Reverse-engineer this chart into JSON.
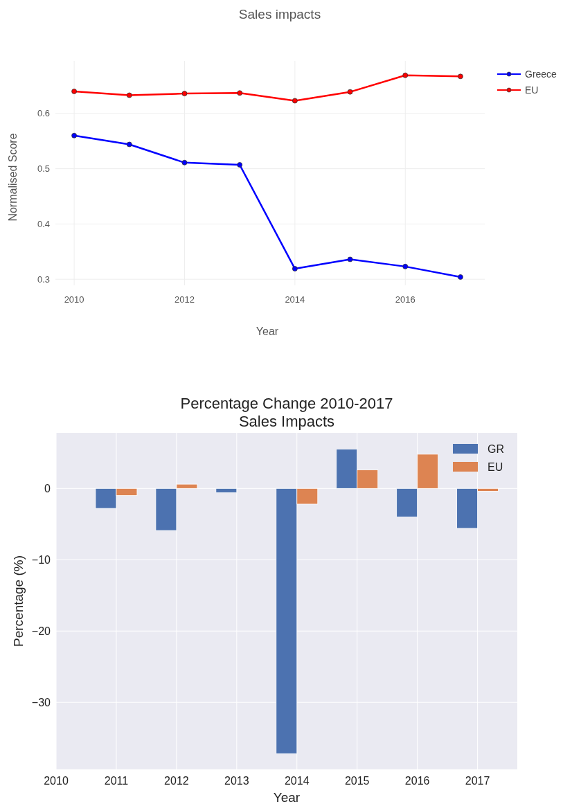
{
  "chart_data": [
    {
      "type": "line",
      "title": "Sales impacts",
      "xlabel": "Year",
      "ylabel": "Normalised Score",
      "x": [
        2010,
        2011,
        2012,
        2013,
        2014,
        2015,
        2016,
        2017
      ],
      "series": [
        {
          "name": "Greece",
          "color": "#0000ff",
          "values": [
            0.56,
            0.544,
            0.511,
            0.507,
            0.319,
            0.336,
            0.323,
            0.304
          ]
        },
        {
          "name": "EU",
          "color": "#ff0000",
          "values": [
            0.64,
            0.633,
            0.636,
            0.637,
            0.623,
            0.639,
            0.669,
            0.667
          ]
        }
      ],
      "xlim": [
        2009.66,
        2017.44
      ],
      "xticks": [
        2010,
        2012,
        2014,
        2016
      ],
      "ylim": [
        0.289,
        0.695
      ],
      "yticks": [
        {
          "value": 0.3,
          "label": "0.3"
        },
        {
          "value": 0.4,
          "label": "0.4"
        },
        {
          "value": 0.5,
          "label": "0.5"
        },
        {
          "value": 0.6,
          "label": "0.6"
        }
      ],
      "grid": true,
      "legend": "top right",
      "marker": "circle"
    },
    {
      "type": "bar",
      "title": "Percentage Change 2010-2017\nSales Impacts",
      "xlabel": "Year",
      "ylabel": "Percentage (%)",
      "categories": [
        "2010",
        "2011",
        "2012",
        "2013",
        "2014",
        "2015",
        "2016",
        "2017"
      ],
      "series": [
        {
          "name": "GR",
          "color": "#4c72b0",
          "values": [
            null,
            -2.8,
            -5.9,
            -0.6,
            -37.2,
            5.5,
            -4.0,
            -5.6
          ]
        },
        {
          "name": "EU",
          "color": "#dd8452",
          "values": [
            null,
            -1.0,
            0.6,
            null,
            -2.2,
            2.6,
            4.8,
            -0.4
          ]
        }
      ],
      "ylim": [
        -39.4,
        7.8
      ],
      "yticks": [
        {
          "value": -30,
          "label": "−30"
        },
        {
          "value": -20,
          "label": "−20"
        },
        {
          "value": -10,
          "label": "−10"
        },
        0
      ],
      "grid": true,
      "legend": "top right"
    }
  ]
}
